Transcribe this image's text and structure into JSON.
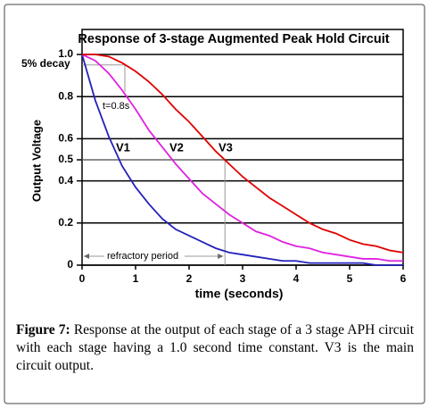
{
  "chart_data": {
    "type": "line",
    "title": "Response of 3-stage Augmented Peak Hold Circuit",
    "x_label": "time (seconds)",
    "y_label": "Output Voltage",
    "x": [
      0,
      0.25,
      0.5,
      0.75,
      1,
      1.25,
      1.5,
      1.75,
      2,
      2.25,
      2.5,
      2.75,
      3,
      3.25,
      3.5,
      3.75,
      4,
      4.25,
      4.5,
      4.75,
      5,
      5.25,
      5.5,
      5.75,
      6
    ],
    "series": [
      {
        "name": "V1",
        "color": "#2222bb",
        "values": [
          1,
          0.78,
          0.61,
          0.47,
          0.37,
          0.29,
          0.22,
          0.17,
          0.14,
          0.11,
          0.08,
          0.06,
          0.05,
          0.04,
          0.03,
          0.02,
          0.02,
          0.01,
          0.01,
          0.01,
          0.01,
          0.01,
          0,
          0,
          0
        ]
      },
      {
        "name": "V2",
        "color": "#e020e0",
        "values": [
          1,
          0.97,
          0.91,
          0.83,
          0.74,
          0.64,
          0.56,
          0.48,
          0.41,
          0.34,
          0.29,
          0.24,
          0.2,
          0.16,
          0.14,
          0.11,
          0.09,
          0.08,
          0.06,
          0.05,
          0.04,
          0.03,
          0.03,
          0.02,
          0.02
        ]
      },
      {
        "name": "V3",
        "color": "#e00000",
        "values": [
          1,
          1,
          0.99,
          0.96,
          0.92,
          0.87,
          0.81,
          0.74,
          0.68,
          0.61,
          0.54,
          0.48,
          0.42,
          0.37,
          0.32,
          0.28,
          0.24,
          0.2,
          0.17,
          0.15,
          0.12,
          0.1,
          0.09,
          0.07,
          0.06
        ]
      }
    ],
    "xlim": [
      0,
      6
    ],
    "xticks": [
      0,
      1,
      2,
      3,
      4,
      5,
      6
    ],
    "ylim": [
      0,
      1
    ],
    "yticks": [
      0,
      0.2,
      0.4,
      0.5,
      0.6,
      0.8,
      {
        "value": 1,
        "label": "1.0"
      }
    ],
    "grid": true,
    "annotations": {
      "decay": "5% decay",
      "decay_time": "t=0.8s",
      "refractory": "refractory period"
    },
    "guides": {
      "decay_level": 0.95,
      "decay_time": 0.8,
      "half_level": 0.5,
      "refractory_time": 2.67
    }
  },
  "caption": {
    "label": "Figure 7:",
    "text": "Response at the output of each stage of a 3 stage APH circuit with each stage having a 1.0 second time constant. V3 is the main circuit output."
  }
}
